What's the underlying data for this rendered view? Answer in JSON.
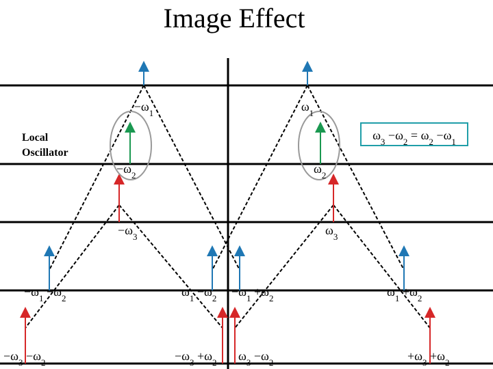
{
  "title": "Image Effect",
  "local_oscillator": [
    "Local",
    "Oscillator"
  ],
  "equation": "ω3 −ω2 = ω2 −ω1",
  "labels": [
    "−ω1",
    "ω1",
    "−ω2",
    "ω2",
    "−ω3",
    "ω3",
    "−ω1 −ω2",
    "ω1 −ω2",
    "−ω1 +ω2",
    "ω1 +ω2",
    "−ω3 −ω2",
    "−ω3 +ω2",
    "ω3 −ω2",
    "+ω3 +ω2"
  ]
}
